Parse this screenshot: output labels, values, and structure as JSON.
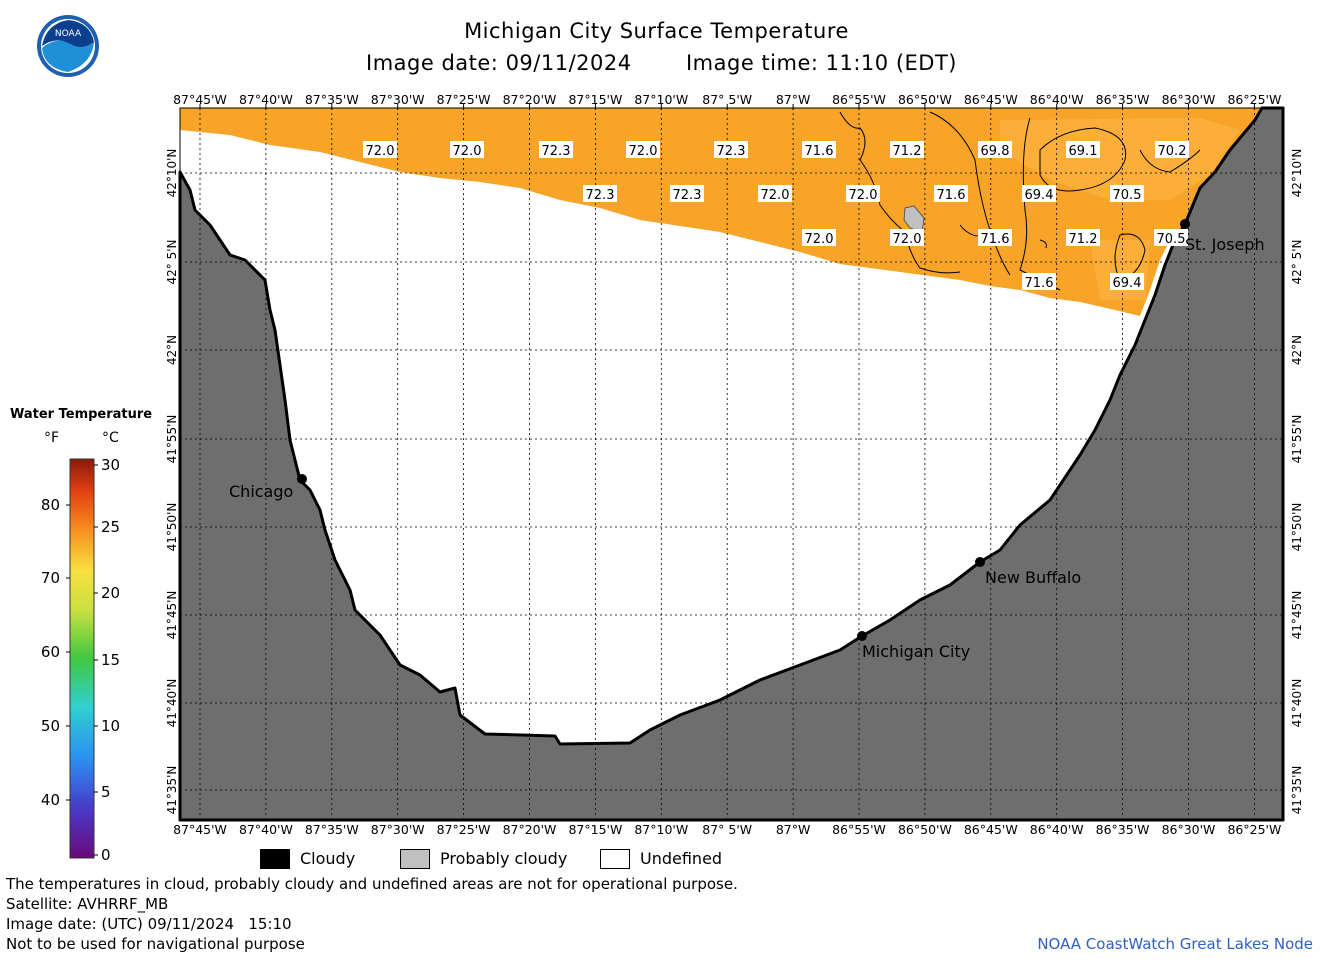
{
  "header": {
    "title": "Michigan City Surface Temperature",
    "image_date": "Image date: 09/11/2024",
    "image_time": "Image time: 11:10 (EDT)"
  },
  "axes": {
    "lon_labels": [
      "87°45'W",
      "87°40'W",
      "87°35'W",
      "87°30'W",
      "87°25'W",
      "87°20'W",
      "87°15'W",
      "87°10'W",
      "87° 5'W",
      "87°W",
      "86°55'W",
      "86°50'W",
      "86°45'W",
      "86°40'W",
      "86°35'W",
      "86°30'W",
      "86°25'W"
    ],
    "lat_labels": [
      "42°10'N",
      "42° 5'N",
      "42°N",
      "41°55'N",
      "41°50'N",
      "41°45'N",
      "41°40'N",
      "41°35'N"
    ]
  },
  "places": [
    {
      "name": "Chicago"
    },
    {
      "name": "St. Joseph"
    },
    {
      "name": "New Buffalo"
    },
    {
      "name": "Michigan City"
    }
  ],
  "temperature_labels": [
    {
      "value": "72.0"
    },
    {
      "value": "72.0"
    },
    {
      "value": "72.3"
    },
    {
      "value": "72.0"
    },
    {
      "value": "72.3"
    },
    {
      "value": "71.6"
    },
    {
      "value": "71.2"
    },
    {
      "value": "69.8"
    },
    {
      "value": "69.1"
    },
    {
      "value": "70.2"
    },
    {
      "value": "72.3"
    },
    {
      "value": "72.3"
    },
    {
      "value": "72.0"
    },
    {
      "value": "72.0"
    },
    {
      "value": "71.6"
    },
    {
      "value": "69.4"
    },
    {
      "value": "70.5"
    },
    {
      "value": "72.0"
    },
    {
      "value": "72.0"
    },
    {
      "value": "71.6"
    },
    {
      "value": "71.2"
    },
    {
      "value": "70.5"
    },
    {
      "value": "71.6"
    },
    {
      "value": "69.4"
    }
  ],
  "color_scale": {
    "title": "Water Temperature",
    "unit_f": "°F",
    "unit_c": "°C",
    "f_ticks": [
      "80",
      "70",
      "60",
      "50",
      "40"
    ],
    "c_ticks": [
      "30",
      "25",
      "20",
      "15",
      "10",
      "5",
      "0"
    ]
  },
  "legend": {
    "cloudy": "Cloudy",
    "probably_cloudy": "Probably cloudy",
    "undefined": "Undefined"
  },
  "footer": {
    "disclaimer": "The temperatures in cloud, probably cloudy and undefined areas are not for operational purpose.",
    "satellite": "Satellite: AVHRRF_MB",
    "utc_date": "Image date: (UTC) 09/11/2024   15:10",
    "nav_warning": "Not to be used for navigational purpose",
    "credit": "NOAA CoastWatch Great Lakes Node"
  },
  "colors": {
    "land": "#6e6e6e",
    "water_warm": "#f7a428",
    "water_cool": "#fbb23c",
    "probably_cloudy": "#c0c0c0",
    "grid": "#000000"
  },
  "logo": {
    "text": "NOAA"
  }
}
